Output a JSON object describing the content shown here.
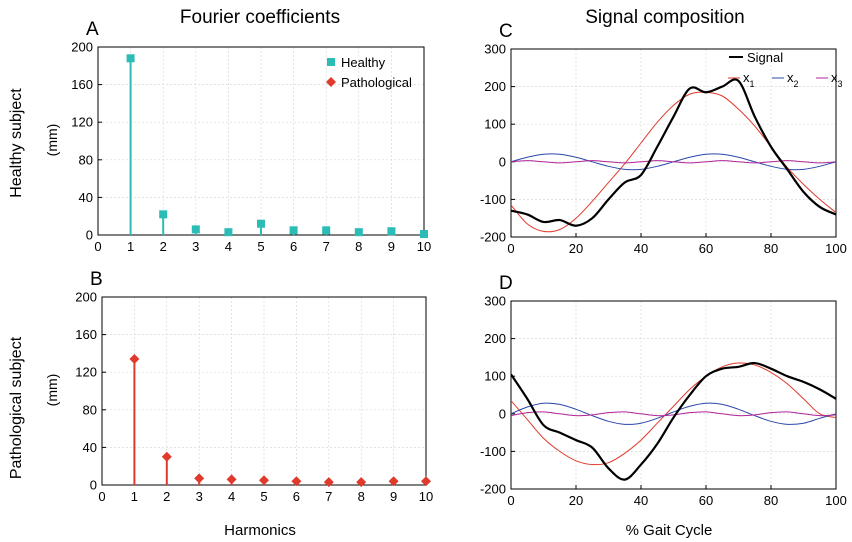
{
  "figure": {
    "title_left": "Fourier coefficients",
    "title_right": "Signal composition",
    "row1_label": "Healthy subject",
    "row2_label": "Pathological subject",
    "unit_label": "(mm)",
    "xlabel_left": "Harmonics",
    "xlabel_right": "% Gait Cycle"
  },
  "chart_data": [
    {
      "panel": "A",
      "type": "stem",
      "x": [
        1,
        2,
        3,
        4,
        5,
        6,
        7,
        8,
        9,
        10
      ],
      "series": [
        {
          "name": "Healthy",
          "values": [
            188,
            22,
            6,
            3,
            12,
            5,
            5,
            3,
            4,
            1
          ],
          "color": "#2bbcb6",
          "marker": "square"
        }
      ],
      "legend": [
        "Healthy",
        "Pathological"
      ],
      "legend_colors": [
        "#2bbcb6",
        "#e03a2c"
      ],
      "legend_position": "top-right",
      "xlim": [
        0,
        10
      ],
      "ylim": [
        0,
        200
      ],
      "xticks": [
        0,
        1,
        2,
        3,
        4,
        5,
        6,
        7,
        8,
        9,
        10
      ],
      "yticks": [
        0,
        40,
        80,
        120,
        160,
        200
      ],
      "grid": true
    },
    {
      "panel": "B",
      "type": "stem",
      "x": [
        1,
        2,
        3,
        4,
        5,
        6,
        7,
        8,
        9,
        10
      ],
      "series": [
        {
          "name": "Pathological",
          "values": [
            134,
            30,
            7,
            6,
            5,
            4,
            3,
            3,
            4,
            4
          ],
          "color": "#e03a2c",
          "marker": "diamond"
        }
      ],
      "xlim": [
        0,
        10
      ],
      "ylim": [
        0,
        200
      ],
      "xticks": [
        0,
        1,
        2,
        3,
        4,
        5,
        6,
        7,
        8,
        9,
        10
      ],
      "yticks": [
        0,
        40,
        80,
        120,
        160,
        200
      ],
      "grid": true
    },
    {
      "panel": "C",
      "type": "line",
      "x": [
        0,
        5,
        10,
        15,
        20,
        25,
        30,
        35,
        40,
        45,
        50,
        55,
        60,
        65,
        70,
        75,
        80,
        85,
        90,
        95,
        100
      ],
      "series": [
        {
          "name": "Signal",
          "color": "#000000",
          "width": 2.2,
          "values": [
            -130,
            -140,
            -160,
            -155,
            -170,
            -150,
            -100,
            -55,
            -35,
            40,
            120,
            195,
            185,
            200,
            215,
            120,
            40,
            -20,
            -80,
            -120,
            -140
          ]
        },
        {
          "name": "x1",
          "color": "#e03a2c",
          "width": 1,
          "values": [
            -115,
            -165,
            -185,
            -180,
            -150,
            -105,
            -55,
            -5,
            50,
            105,
            150,
            180,
            185,
            175,
            140,
            95,
            40,
            -15,
            -60,
            -100,
            -135
          ]
        },
        {
          "name": "x2",
          "color": "#2b48a8",
          "width": 1,
          "values": [
            0,
            12,
            20,
            20,
            12,
            0,
            -12,
            -20,
            -20,
            -12,
            0,
            12,
            20,
            20,
            12,
            0,
            -12,
            -20,
            -20,
            -12,
            0
          ]
        },
        {
          "name": "x3",
          "color": "#b0249a",
          "width": 1,
          "values": [
            0,
            3,
            0,
            -3,
            0,
            3,
            0,
            -3,
            0,
            3,
            0,
            -3,
            0,
            3,
            0,
            -3,
            0,
            3,
            0,
            -3,
            0
          ]
        }
      ],
      "legend": [
        "Signal",
        "x1",
        "x2",
        "x3"
      ],
      "legend_position": "top-right",
      "xlim": [
        0,
        100
      ],
      "ylim": [
        -200,
        300
      ],
      "xticks": [
        0,
        20,
        40,
        60,
        80,
        100
      ],
      "yticks": [
        -200,
        -100,
        0,
        100,
        200,
        300
      ],
      "grid": true
    },
    {
      "panel": "D",
      "type": "line",
      "x": [
        0,
        5,
        10,
        15,
        20,
        25,
        30,
        35,
        40,
        45,
        50,
        55,
        60,
        65,
        70,
        75,
        80,
        85,
        90,
        95,
        100
      ],
      "series": [
        {
          "name": "Signal",
          "color": "#000000",
          "width": 2.2,
          "values": [
            105,
            40,
            -30,
            -50,
            -70,
            -90,
            -145,
            -175,
            -135,
            -80,
            -10,
            50,
            100,
            120,
            125,
            135,
            120,
            100,
            85,
            65,
            40
          ]
        },
        {
          "name": "x1",
          "color": "#e03a2c",
          "width": 1,
          "values": [
            35,
            -15,
            -65,
            -100,
            -125,
            -135,
            -130,
            -105,
            -70,
            -25,
            20,
            65,
            100,
            125,
            135,
            130,
            110,
            80,
            40,
            0,
            -10
          ]
        },
        {
          "name": "x2",
          "color": "#2b48a8",
          "width": 1,
          "values": [
            0,
            18,
            28,
            25,
            12,
            -5,
            -20,
            -28,
            -25,
            -12,
            5,
            20,
            28,
            25,
            12,
            -5,
            -20,
            -28,
            -25,
            -12,
            0
          ]
        },
        {
          "name": "x3",
          "color": "#b0249a",
          "width": 1,
          "values": [
            -5,
            3,
            5,
            0,
            -5,
            -3,
            3,
            5,
            0,
            -5,
            -3,
            3,
            5,
            0,
            -5,
            -3,
            3,
            5,
            0,
            -5,
            -3
          ]
        }
      ],
      "xlim": [
        0,
        100
      ],
      "ylim": [
        -200,
        300
      ],
      "xticks": [
        0,
        20,
        40,
        60,
        80,
        100
      ],
      "yticks": [
        -200,
        -100,
        0,
        100,
        200,
        300
      ],
      "grid": true
    }
  ]
}
